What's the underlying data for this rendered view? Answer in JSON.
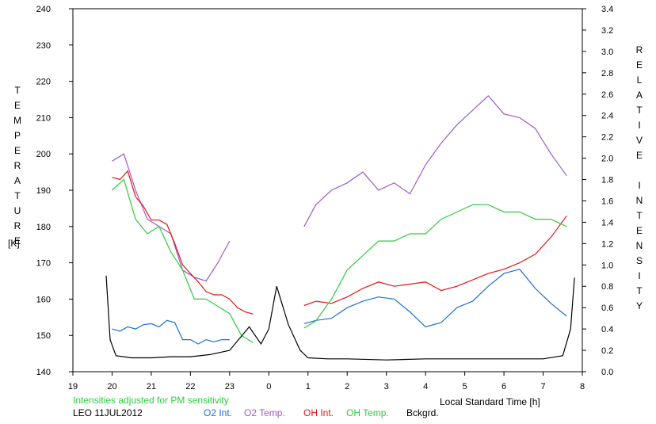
{
  "chart_data": {
    "type": "line",
    "title": "",
    "xlabel": "Local Standard Time [h]",
    "x_ticks": [
      "19",
      "20",
      "21",
      "22",
      "23",
      "0",
      "1",
      "2",
      "3",
      "4",
      "5",
      "6",
      "7",
      "8"
    ],
    "x_range_hours": [
      19,
      32
    ],
    "y_left": {
      "label_letters": [
        "T",
        "E",
        "M",
        "P",
        "E",
        "R",
        "A",
        "T",
        "U",
        "R",
        "E"
      ],
      "unit": "[K]",
      "range": [
        140,
        240
      ],
      "ticks": [
        "140",
        "150",
        "160",
        "170",
        "180",
        "190",
        "200",
        "210",
        "220",
        "230",
        "240"
      ]
    },
    "y_right": {
      "label_word1": [
        "R",
        "E",
        "L",
        "A",
        "T",
        "I",
        "V",
        "E"
      ],
      "label_word2": [
        "I",
        "N",
        "T",
        "E",
        "N",
        "S",
        "I",
        "T",
        "Y"
      ],
      "range": [
        0,
        3.4
      ],
      "ticks": [
        "0.0",
        "0.2",
        "0.4",
        "0.6",
        "0.8",
        "1.0",
        "1.2",
        "1.4",
        "1.6",
        "1.8",
        "2.0",
        "2.2",
        "2.4",
        "2.6",
        "2.8",
        "3.0",
        "3.2",
        "3.4"
      ]
    },
    "note": "Intensities adjusted for PM sensitivity",
    "station": "LEO 11JUL2012",
    "grid": false,
    "legend_placement": "bottom",
    "series": [
      {
        "name": "O2 Int.",
        "color": "#1a6fd6",
        "axis": "right",
        "x": [
          20.0,
          20.2,
          20.4,
          20.6,
          20.8,
          21.0,
          21.2,
          21.4,
          21.6,
          21.8,
          22.0,
          22.2,
          22.4,
          22.6,
          22.8,
          23.0,
          24.9,
          25.2,
          25.6,
          26.0,
          26.4,
          26.8,
          27.2,
          27.6,
          28.0,
          28.4,
          28.8,
          29.2,
          29.6,
          30.0,
          30.4,
          30.8,
          31.2,
          31.6
        ],
        "y": [
          0.4,
          0.38,
          0.42,
          0.4,
          0.44,
          0.45,
          0.42,
          0.48,
          0.46,
          0.3,
          0.3,
          0.26,
          0.3,
          0.28,
          0.3,
          0.3,
          0.45,
          0.48,
          0.5,
          0.6,
          0.66,
          0.7,
          0.68,
          0.56,
          0.42,
          0.46,
          0.6,
          0.66,
          0.8,
          0.92,
          0.96,
          0.78,
          0.64,
          0.52
        ]
      },
      {
        "name": "O2 Temp.",
        "color": "#9b59d0",
        "axis": "left",
        "x": [
          20.0,
          20.3,
          20.6,
          20.9,
          21.2,
          21.5,
          21.8,
          22.1,
          22.4,
          22.7,
          23.0,
          24.9,
          25.2,
          25.6,
          26.0,
          26.4,
          26.8,
          27.2,
          27.6,
          28.0,
          28.4,
          28.8,
          29.2,
          29.6,
          30.0,
          30.4,
          30.8,
          31.2,
          31.6
        ],
        "y": [
          198,
          200,
          190,
          182,
          180,
          178,
          168,
          166,
          165,
          170,
          176,
          180,
          186,
          190,
          192,
          195,
          190,
          192,
          189,
          197,
          203,
          208,
          212,
          216,
          211,
          210,
          207,
          200,
          194
        ]
      },
      {
        "name": "OH Int.",
        "color": "#e01515",
        "axis": "right",
        "x": [
          20.0,
          20.2,
          20.4,
          20.6,
          20.8,
          21.0,
          21.2,
          21.4,
          21.6,
          21.8,
          22.0,
          22.2,
          22.4,
          22.6,
          22.8,
          23.0,
          23.2,
          23.4,
          23.6,
          24.9,
          25.2,
          25.6,
          26.0,
          26.4,
          26.8,
          27.2,
          27.6,
          28.0,
          28.4,
          28.8,
          29.2,
          29.6,
          30.0,
          30.4,
          30.8,
          31.2,
          31.6
        ],
        "y": [
          1.82,
          1.8,
          1.88,
          1.64,
          1.55,
          1.42,
          1.42,
          1.38,
          1.2,
          1.0,
          0.92,
          0.84,
          0.75,
          0.72,
          0.72,
          0.68,
          0.6,
          0.56,
          0.54,
          0.62,
          0.66,
          0.64,
          0.7,
          0.78,
          0.84,
          0.8,
          0.82,
          0.84,
          0.76,
          0.8,
          0.86,
          0.92,
          0.96,
          1.02,
          1.1,
          1.26,
          1.46
        ]
      },
      {
        "name": "OH Temp.",
        "color": "#2ecc40",
        "axis": "left",
        "x": [
          20.0,
          20.3,
          20.6,
          20.9,
          21.2,
          21.5,
          21.8,
          22.1,
          22.4,
          22.7,
          23.0,
          23.3,
          23.6,
          24.9,
          25.2,
          25.6,
          26.0,
          26.4,
          26.8,
          27.2,
          27.6,
          28.0,
          28.4,
          28.8,
          29.2,
          29.6,
          30.0,
          30.4,
          30.8,
          31.2,
          31.6
        ],
        "y": [
          190,
          193,
          182,
          178,
          180,
          173,
          168,
          160,
          160,
          158,
          156,
          150,
          148,
          152,
          154,
          160,
          168,
          172,
          176,
          176,
          178,
          178,
          182,
          184,
          186,
          186,
          184,
          184,
          182,
          182,
          180
        ]
      },
      {
        "name": "Bckgrd.",
        "color": "#000000",
        "axis": "right",
        "x": [
          19.85,
          19.95,
          20.1,
          20.5,
          21.0,
          21.5,
          22.0,
          22.5,
          23.0,
          23.5,
          23.8,
          24.0,
          24.2,
          24.5,
          24.8,
          25.0,
          25.5,
          26.0,
          27.0,
          28.0,
          29.0,
          30.0,
          31.0,
          31.5,
          31.7,
          31.8
        ],
        "y": [
          0.9,
          0.3,
          0.15,
          0.13,
          0.13,
          0.14,
          0.14,
          0.16,
          0.2,
          0.42,
          0.26,
          0.4,
          0.8,
          0.44,
          0.2,
          0.13,
          0.12,
          0.12,
          0.11,
          0.12,
          0.12,
          0.12,
          0.12,
          0.15,
          0.4,
          0.88
        ]
      }
    ]
  }
}
